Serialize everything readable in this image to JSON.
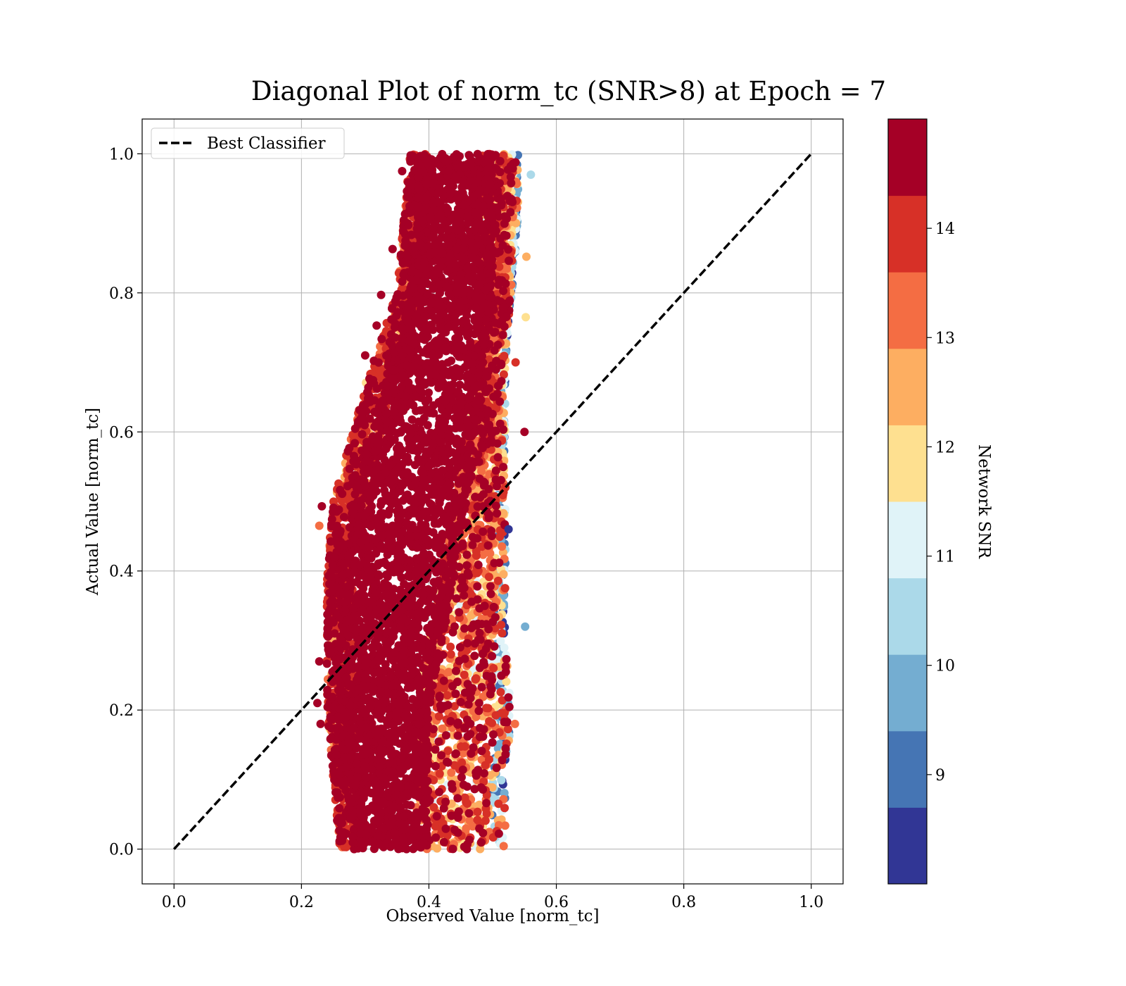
{
  "chart_data": {
    "type": "scatter",
    "title": "Diagonal Plot of norm_tc (SNR>8) at Epoch = 7",
    "xlabel": "Observed Value [norm_tc]",
    "ylabel": "Actual Value [norm_tc]",
    "xlim": [
      -0.05,
      1.05
    ],
    "ylim": [
      -0.05,
      1.05
    ],
    "xticks": [
      "0.0",
      "0.2",
      "0.4",
      "0.6",
      "0.8",
      "1.0"
    ],
    "xtick_values": [
      0.0,
      0.2,
      0.4,
      0.6,
      0.8,
      1.0
    ],
    "yticks": [
      "0.0",
      "0.2",
      "0.4",
      "0.6",
      "0.8",
      "1.0"
    ],
    "ytick_values": [
      0.0,
      0.2,
      0.4,
      0.6,
      0.8,
      1.0
    ],
    "grid": true,
    "legend": {
      "placement": "upper-left",
      "entries": [
        {
          "label": "Best Classifier",
          "style": "dashed",
          "color": "#000000"
        }
      ]
    },
    "reference_line": {
      "label": "Best Classifier",
      "x": [
        0.0,
        1.0
      ],
      "y": [
        0.0,
        1.0
      ]
    },
    "colorbar": {
      "label": "Network SNR",
      "range": [
        8.0,
        15.0
      ],
      "ticks": [
        "9",
        "10",
        "11",
        "12",
        "13",
        "14"
      ],
      "tick_values": [
        9,
        10,
        11,
        12,
        13,
        14
      ],
      "band_colors": [
        "#313695",
        "#4575b4",
        "#74add1",
        "#abd9e9",
        "#e0f3f8",
        "#fee090",
        "#fdae61",
        "#f46d43",
        "#d73027",
        "#a50026"
      ]
    },
    "scatter_envelope": {
      "y": [
        0.0,
        0.1,
        0.2,
        0.3,
        0.4,
        0.5,
        0.6,
        0.7,
        0.8,
        0.9,
        1.0
      ],
      "x_min": [
        0.26,
        0.25,
        0.24,
        0.24,
        0.24,
        0.25,
        0.28,
        0.31,
        0.35,
        0.36,
        0.37
      ],
      "x_max": [
        0.52,
        0.52,
        0.53,
        0.52,
        0.52,
        0.52,
        0.52,
        0.52,
        0.53,
        0.54,
        0.54
      ],
      "dense_min": [
        0.28,
        0.27,
        0.26,
        0.26,
        0.26,
        0.28,
        0.31,
        0.34,
        0.37,
        0.38,
        0.38
      ],
      "dense_max": [
        0.4,
        0.4,
        0.4,
        0.42,
        0.44,
        0.46,
        0.48,
        0.49,
        0.5,
        0.5,
        0.5
      ]
    },
    "outliers": [
      {
        "x": 0.55,
        "y": 0.6,
        "snr": 14.5
      },
      {
        "x": 0.552,
        "y": 0.765,
        "snr": 12.0
      },
      {
        "x": 0.553,
        "y": 0.852,
        "snr": 12.5
      },
      {
        "x": 0.56,
        "y": 0.97,
        "snr": 10.5
      },
      {
        "x": 0.551,
        "y": 0.32,
        "snr": 9.8
      },
      {
        "x": 0.535,
        "y": 0.18,
        "snr": 13.5
      },
      {
        "x": 0.536,
        "y": 0.7,
        "snr": 14.0
      },
      {
        "x": 0.525,
        "y": 0.46,
        "snr": 8.3
      },
      {
        "x": 0.228,
        "y": 0.27,
        "snr": 14.5
      },
      {
        "x": 0.225,
        "y": 0.21,
        "snr": 14.5
      },
      {
        "x": 0.23,
        "y": 0.18,
        "snr": 14.5
      },
      {
        "x": 0.228,
        "y": 0.465,
        "snr": 13.0
      },
      {
        "x": 0.232,
        "y": 0.493,
        "snr": 14.5
      },
      {
        "x": 0.358,
        "y": 0.975,
        "snr": 14.5
      },
      {
        "x": 0.343,
        "y": 0.863,
        "snr": 14.5
      },
      {
        "x": 0.325,
        "y": 0.797,
        "snr": 14.5
      },
      {
        "x": 0.318,
        "y": 0.753,
        "snr": 14.5
      },
      {
        "x": 0.3,
        "y": 0.71,
        "snr": 14.5
      }
    ]
  }
}
